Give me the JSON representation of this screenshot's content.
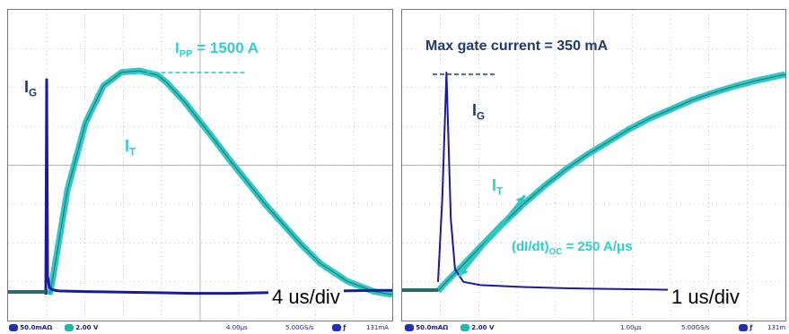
{
  "colors": {
    "ig": "#1a1a9c",
    "it": "#2ec7c4",
    "grid": "#9a9a9a",
    "accent_text": "#33cccc",
    "label_text": "#1f3b6e"
  },
  "panels": [
    {
      "id": "left",
      "annotations": {
        "ig": {
          "main": "I",
          "sub": "G"
        },
        "it": {
          "main": "I",
          "sub": "T"
        },
        "ipp": {
          "main": "I",
          "sub": "PP",
          "rest": " = 1500 A"
        }
      },
      "timebase_label": "4 us/div",
      "status_bar": {
        "ch1": "50.0mAΩ",
        "ch2_num": "2",
        "ch2": "2.00 V",
        "time": "4.00μs",
        "rate": "5.00GS/s",
        "trig_sym": "ƒ",
        "trig_level": "131mA"
      }
    },
    {
      "id": "right",
      "annotations": {
        "max_gate": "Max gate current = 350 mA",
        "ig": {
          "main": "I",
          "sub": "G"
        },
        "it": {
          "main": "I",
          "sub": "T"
        },
        "didt": {
          "main": "(dI/dt)",
          "sub": "OC",
          "rest": " = 250 A/μs"
        }
      },
      "timebase_label": "1 us/div",
      "status_bar": {
        "ch1": "50.0mAΩ",
        "ch2_num": "2",
        "ch2": "2.00 V",
        "time": "1.00μs",
        "rate": "5.00GS/s",
        "trig_sym": "ƒ",
        "trig_level": "131m"
      }
    }
  ],
  "chart_data": [
    {
      "type": "line",
      "title": "",
      "grid": true,
      "x_unit": "us",
      "x_per_div": 4,
      "x_divisions": 10,
      "y_divisions": 8,
      "series": [
        {
          "name": "I_T",
          "x": [
            0,
            0.3,
            2,
            4,
            6,
            8,
            10,
            12,
            13,
            15,
            18,
            20,
            24,
            28,
            30,
            33,
            36,
            38
          ],
          "y": [
            0,
            80,
            700,
            1150,
            1400,
            1490,
            1500,
            1470,
            1420,
            1290,
            1060,
            900,
            600,
            330,
            210,
            90,
            20,
            0
          ]
        },
        {
          "name": "I_G",
          "x": [
            -0.4,
            -0.3,
            -0.2,
            0,
            0.3,
            1,
            4,
            8,
            12,
            16,
            20,
            24,
            28,
            32,
            36,
            38
          ],
          "y": [
            0,
            350,
            30,
            12,
            8,
            6,
            5,
            4,
            3,
            2,
            2,
            3,
            5,
            6,
            7,
            7
          ]
        }
      ],
      "annotations": {
        "I_PP_A": 1500
      }
    },
    {
      "type": "line",
      "title": "",
      "grid": true,
      "x_unit": "us",
      "x_per_div": 1,
      "x_divisions": 10,
      "y_divisions": 8,
      "series": [
        {
          "name": "I_T",
          "x": [
            0,
            0.2,
            0.5,
            1,
            1.5,
            2,
            2.5,
            3,
            3.5,
            4,
            4.5,
            5,
            5.5,
            6,
            6.5,
            7,
            7.5,
            8.2
          ],
          "y": [
            0,
            50,
            120,
            240,
            360,
            470,
            570,
            660,
            740,
            810,
            880,
            940,
            990,
            1040,
            1080,
            1115,
            1145,
            1180
          ]
        },
        {
          "name": "I_G",
          "x": [
            0,
            0.1,
            0.2,
            0.3,
            0.4,
            0.6,
            1,
            2,
            3,
            4,
            5,
            6,
            7
          ],
          "y": [
            20,
            150,
            350,
            120,
            40,
            20,
            15,
            12,
            10,
            9,
            8,
            7,
            6
          ]
        }
      ],
      "annotations": {
        "max_gate_current_mA": 350,
        "dIdt_A_per_us": 250
      }
    }
  ]
}
